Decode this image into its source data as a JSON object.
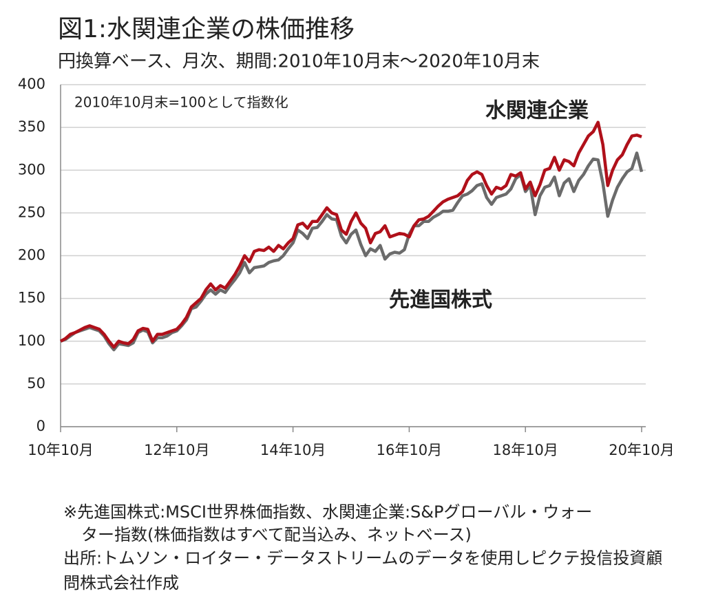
{
  "chart_data": {
    "type": "line",
    "title": "図1:水関連企業の株価推移",
    "subtitle": "円換算ベース、月次、期間:2010年10月末～2020年10月末",
    "annotation": "2010年10月末=100として指数化",
    "notes": [
      "※先進国株式:MSCI世界株価指数、水関連企業:S&Pグローバル・ウォー",
      "ター指数(株価指数はすべて配当込み、ネットベース)",
      "出所:トムソン・ロイター・データストリームのデータを使用しピクテ投信投資顧",
      "問株式会社作成"
    ],
    "categories": [
      "10年10月",
      null,
      null,
      null,
      null,
      null,
      null,
      null,
      null,
      null,
      null,
      null,
      null,
      null,
      null,
      null,
      null,
      null,
      null,
      null,
      null,
      null,
      null,
      null,
      "12年10月",
      null,
      null,
      null,
      null,
      null,
      null,
      null,
      null,
      null,
      null,
      null,
      null,
      null,
      null,
      null,
      null,
      null,
      null,
      null,
      null,
      null,
      null,
      null,
      "14年10月",
      null,
      null,
      null,
      null,
      null,
      null,
      null,
      null,
      null,
      null,
      null,
      null,
      null,
      null,
      null,
      null,
      null,
      null,
      null,
      null,
      null,
      null,
      null,
      "16年10月",
      null,
      null,
      null,
      null,
      null,
      null,
      null,
      null,
      null,
      null,
      null,
      null,
      null,
      null,
      null,
      null,
      null,
      null,
      null,
      null,
      null,
      null,
      null,
      "18年10月",
      null,
      null,
      null,
      null,
      null,
      null,
      null,
      null,
      null,
      null,
      null,
      null,
      null,
      null,
      null,
      null,
      null,
      null,
      null,
      null,
      null,
      null,
      null,
      "20年10月"
    ],
    "series": [
      {
        "name": "先進国株式",
        "color": "#6b6b6b",
        "values": [
          100,
          102,
          106,
          110,
          112,
          114,
          116,
          114,
          112,
          106,
          97,
          90,
          97,
          96,
          95,
          98,
          110,
          113,
          111,
          98,
          104,
          104,
          106,
          110,
          112,
          118,
          125,
          138,
          140,
          147,
          155,
          160,
          155,
          160,
          157,
          165,
          172,
          180,
          192,
          180,
          186,
          187,
          188,
          192,
          194,
          195,
          200,
          208,
          215,
          230,
          226,
          220,
          232,
          233,
          240,
          248,
          243,
          242,
          223,
          215,
          225,
          230,
          213,
          200,
          208,
          205,
          212,
          196,
          202,
          204,
          203,
          207,
          225,
          235,
          235,
          240,
          240,
          245,
          248,
          252,
          252,
          253,
          262,
          270,
          272,
          276,
          282,
          284,
          268,
          260,
          268,
          270,
          272,
          278,
          290,
          295,
          275,
          282,
          248,
          270,
          280,
          282,
          292,
          270,
          285,
          290,
          275,
          288,
          295,
          305,
          313,
          312,
          285,
          246,
          265,
          280,
          290,
          298,
          302,
          320,
          298
        ]
      },
      {
        "name": "水関連企業",
        "color": "#b0101a",
        "values": [
          100,
          103,
          108,
          110,
          113,
          116,
          118,
          116,
          114,
          108,
          100,
          93,
          100,
          98,
          97,
          102,
          112,
          115,
          114,
          100,
          108,
          108,
          110,
          112,
          114,
          120,
          128,
          140,
          145,
          150,
          160,
          167,
          160,
          165,
          162,
          170,
          178,
          188,
          200,
          193,
          205,
          207,
          206,
          210,
          205,
          212,
          208,
          215,
          220,
          236,
          238,
          232,
          240,
          240,
          248,
          256,
          250,
          248,
          230,
          225,
          240,
          250,
          238,
          232,
          215,
          226,
          228,
          235,
          222,
          224,
          226,
          225,
          222,
          235,
          242,
          243,
          246,
          252,
          258,
          263,
          266,
          268,
          270,
          275,
          288,
          295,
          298,
          295,
          282,
          272,
          280,
          278,
          282,
          295,
          293,
          297,
          278,
          286,
          270,
          283,
          300,
          302,
          315,
          300,
          312,
          310,
          305,
          320,
          330,
          340,
          345,
          356,
          330,
          282,
          300,
          312,
          318,
          330,
          340,
          341,
          339
        ]
      }
    ],
    "ylim": [
      0,
      400
    ],
    "yticks": [
      0,
      50,
      100,
      150,
      200,
      250,
      300,
      350,
      400
    ],
    "grid": true
  }
}
